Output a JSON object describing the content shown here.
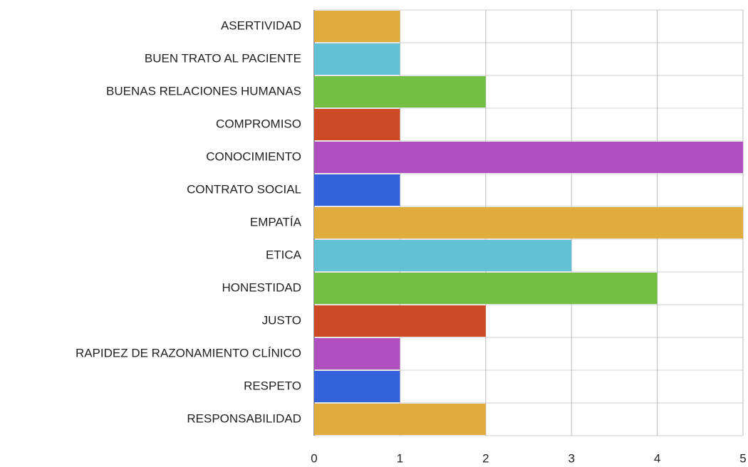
{
  "chart_data": {
    "type": "bar",
    "orientation": "horizontal",
    "categories": [
      "ASERTIVIDAD",
      "BUEN TRATO AL PACIENTE",
      "BUENAS RELACIONES HUMANAS",
      "COMPROMISO",
      "CONOCIMIENTO",
      "CONTRATO SOCIAL",
      "EMPATÍA",
      "ETICA",
      "HONESTIDAD",
      "JUSTO",
      "RAPIDEZ DE RAZONAMIENTO CLÍNICO",
      "RESPETO",
      "RESPONSABILIDAD"
    ],
    "values": [
      1,
      1,
      2,
      1,
      5,
      1,
      5,
      3,
      4,
      2,
      1,
      1,
      2
    ],
    "colors": [
      "#e0ac3e",
      "#62c2d4",
      "#72bf44",
      "#cc4b25",
      "#b050c0",
      "#3362db",
      "#e0ac3e",
      "#62c2d4",
      "#72bf44",
      "#cc4b25",
      "#b050c0",
      "#3362db",
      "#e0ac3e"
    ],
    "xlim": [
      0,
      5
    ],
    "xticks": [
      0,
      1,
      2,
      3,
      4,
      5
    ],
    "grid": true
  }
}
